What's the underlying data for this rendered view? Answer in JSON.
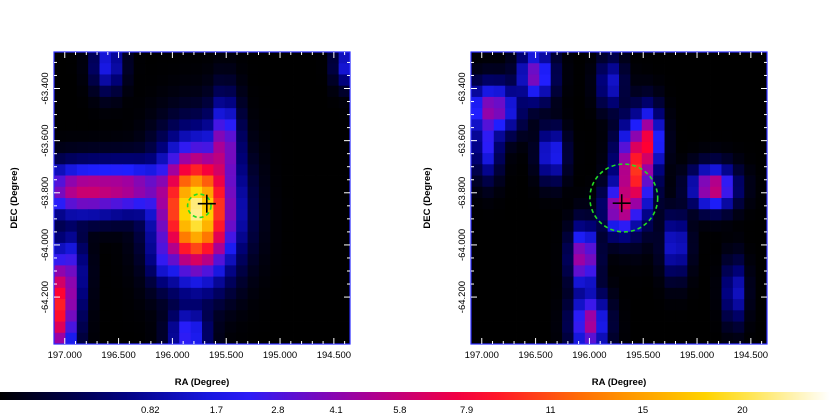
{
  "panels": [
    {
      "id": "left",
      "xlabel": "RA (Degree)",
      "ylabel": "DEC (Degree)",
      "ra_range": [
        197.1,
        194.35
      ],
      "dec_range": [
        -64.38,
        -63.26
      ],
      "ra_ticks": [
        "197.000",
        "196.500",
        "196.000",
        "195.500",
        "195.000",
        "194.500"
      ],
      "dec_ticks": [
        "-63.400",
        "-63.600",
        "-63.800",
        "-64.000",
        "-64.200"
      ],
      "marker": {
        "ra": 195.68,
        "dec": -63.842
      },
      "circle": {
        "ra": 195.75,
        "dec": -63.85,
        "radius_deg": 0.045
      },
      "sources": [
        {
          "ra": 195.78,
          "dec": -63.87,
          "amp": 22,
          "sx": 0.17,
          "sy": 0.12
        },
        {
          "ra": 195.52,
          "dec": -63.62,
          "amp": 4.5,
          "sx": 0.07,
          "sy": 0.09
        },
        {
          "ra": 196.4,
          "dec": -63.78,
          "amp": 4.5,
          "sx": 0.22,
          "sy": 0.05
        },
        {
          "ra": 196.85,
          "dec": -63.79,
          "amp": 5.5,
          "sx": 0.22,
          "sy": 0.05
        },
        {
          "ra": 197.05,
          "dec": -64.24,
          "amp": 9,
          "sx": 0.08,
          "sy": 0.1
        },
        {
          "ra": 196.95,
          "dec": -64.1,
          "amp": 2.2,
          "sx": 0.07,
          "sy": 0.08
        },
        {
          "ra": 195.85,
          "dec": -64.34,
          "amp": 2.6,
          "sx": 0.09,
          "sy": 0.05
        },
        {
          "ra": 196.6,
          "dec": -63.31,
          "amp": 1.8,
          "sx": 0.07,
          "sy": 0.05
        },
        {
          "ra": 194.4,
          "dec": -63.31,
          "amp": 1.5,
          "sx": 0.05,
          "sy": 0.04
        },
        {
          "ra": 196.1,
          "dec": -64.05,
          "amp": 1.2,
          "sx": 0.06,
          "sy": 0.05
        }
      ]
    },
    {
      "id": "right",
      "xlabel": "RA (Degree)",
      "ylabel": "DEC (Degree)",
      "ra_range": [
        197.1,
        194.35
      ],
      "dec_range": [
        -64.38,
        -63.26
      ],
      "ra_ticks": [
        "197.000",
        "196.500",
        "196.000",
        "195.500",
        "195.000",
        "194.500"
      ],
      "dec_ticks": [
        "-63.400",
        "-63.600",
        "-63.800",
        "-64.000",
        "-64.200"
      ],
      "marker": {
        "ra": 195.7,
        "dec": -63.84
      },
      "circle": {
        "ra": 195.68,
        "dec": -63.82,
        "radius_deg": 0.13
      },
      "sources": [
        {
          "ra": 195.58,
          "dec": -63.72,
          "amp": 10,
          "sx": 0.08,
          "sy": 0.09
        },
        {
          "ra": 195.45,
          "dec": -63.6,
          "amp": 7,
          "sx": 0.06,
          "sy": 0.06
        },
        {
          "ra": 195.72,
          "dec": -63.86,
          "amp": 6,
          "sx": 0.07,
          "sy": 0.05
        },
        {
          "ra": 194.85,
          "dec": -63.78,
          "amp": 6.5,
          "sx": 0.1,
          "sy": 0.04
        },
        {
          "ra": 196.05,
          "dec": -64.05,
          "amp": 6,
          "sx": 0.06,
          "sy": 0.06
        },
        {
          "ra": 196.0,
          "dec": -64.3,
          "amp": 5,
          "sx": 0.08,
          "sy": 0.06
        },
        {
          "ra": 196.9,
          "dec": -63.48,
          "amp": 4.5,
          "sx": 0.12,
          "sy": 0.05
        },
        {
          "ra": 196.5,
          "dec": -63.35,
          "amp": 4,
          "sx": 0.08,
          "sy": 0.05
        },
        {
          "ra": 196.95,
          "dec": -63.62,
          "amp": 2.2,
          "sx": 0.06,
          "sy": 0.06
        },
        {
          "ra": 196.35,
          "dec": -63.65,
          "amp": 2.4,
          "sx": 0.06,
          "sy": 0.05
        },
        {
          "ra": 195.2,
          "dec": -64.0,
          "amp": 1.8,
          "sx": 0.06,
          "sy": 0.06
        },
        {
          "ra": 194.65,
          "dec": -64.18,
          "amp": 1.5,
          "sx": 0.05,
          "sy": 0.06
        },
        {
          "ra": 195.8,
          "dec": -63.38,
          "amp": 1.4,
          "sx": 0.06,
          "sy": 0.05
        }
      ]
    }
  ],
  "colorbar": {
    "labels": [
      "0.82",
      "1.7",
      "2.8",
      "4.1",
      "5.8",
      "7.9",
      "11",
      "15",
      "20"
    ],
    "label_values": [
      0.82,
      1.7,
      2.8,
      4.1,
      5.8,
      7.9,
      11,
      15,
      20
    ],
    "vmax": 25,
    "colormap": [
      "#000000",
      "#00007a",
      "#1f1fff",
      "#a000a0",
      "#ff0033",
      "#ff7a00",
      "#ffd800",
      "#ffffff"
    ]
  }
}
